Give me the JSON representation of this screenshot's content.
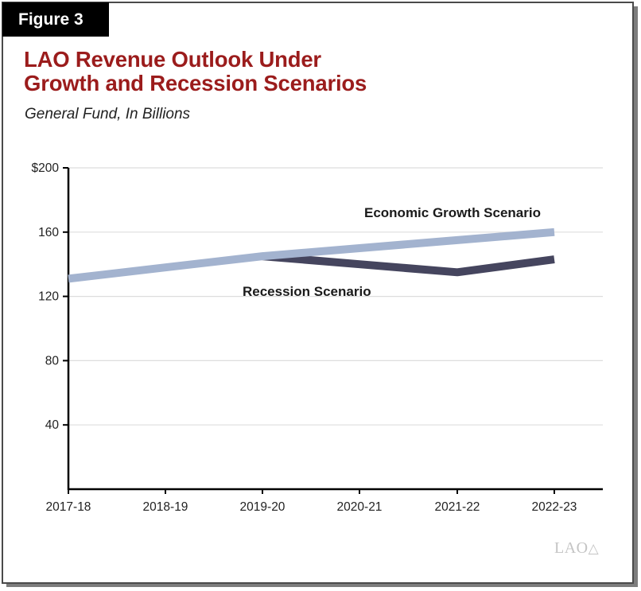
{
  "figure_label": "Figure 3",
  "title_line1": "LAO Revenue Outlook Under",
  "title_line2": "Growth and Recession Scenarios",
  "subtitle": "General Fund, In Billions",
  "logo_text": "LAO",
  "colors": {
    "title": "#9b1c1c",
    "growth": "#a3b3cf",
    "recession": "#45455e",
    "grid": "#dddddd",
    "axis": "#000000"
  },
  "chart_data": {
    "type": "line",
    "title": "LAO Revenue Outlook Under Growth and Recession Scenarios",
    "subtitle": "General Fund, In Billions",
    "xlabel": "",
    "ylabel": "",
    "categories": [
      "2017-18",
      "2018-19",
      "2019-20",
      "2020-21",
      "2021-22",
      "2022-23"
    ],
    "ylim": [
      0,
      200
    ],
    "yticks": [
      40,
      80,
      120,
      160,
      200
    ],
    "ytick_labels": [
      "40",
      "80",
      "120",
      "160",
      "$200"
    ],
    "grid": true,
    "series": [
      {
        "name": "Economic Growth Scenario",
        "values": [
          131,
          138,
          145,
          150,
          155,
          160
        ],
        "color": "#a3b3cf"
      },
      {
        "name": "Recession Scenario",
        "values": [
          null,
          null,
          145,
          140,
          135,
          143
        ],
        "color": "#45455e"
      }
    ],
    "annotations": [
      {
        "text": "Economic Growth Scenario",
        "series": 0,
        "position": "above-right"
      },
      {
        "text": "Recession Scenario",
        "series": 1,
        "position": "below-center"
      }
    ]
  }
}
